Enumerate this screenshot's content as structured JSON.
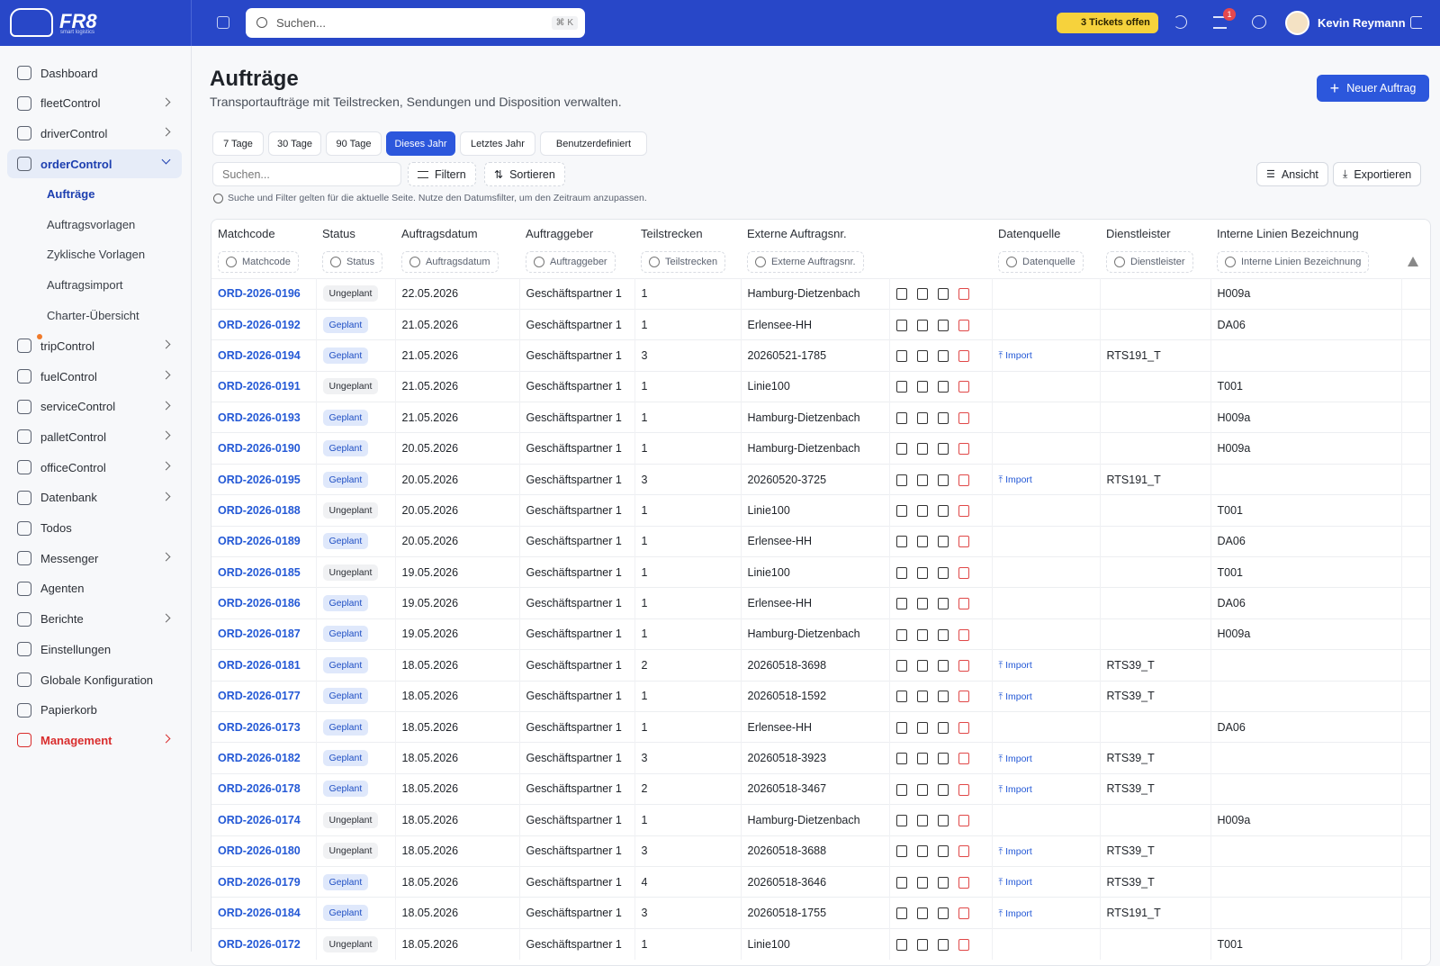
{
  "header": {
    "search": "Suchen...",
    "shortcut": "⌘ K",
    "tickets": "3 Tickets offen",
    "notifications": "1",
    "user": "Kevin Reymann"
  },
  "sidebar": {
    "logo": "FR8",
    "tagline": "smart logistics",
    "nav": [
      "Dashboard",
      "fleetControl",
      "driverControl",
      "orderControl",
      "tripControl",
      "fuelControl",
      "serviceControl",
      "palletControl",
      "officeControl",
      "Datenbank",
      "Todos",
      "Messenger",
      "Agenten",
      "Berichte",
      "Einstellungen",
      "Globale Konfiguration",
      "Papierkorb",
      "Management"
    ],
    "subnav": [
      "Aufträge",
      "Auftragsvorlagen",
      "Zyklische Vorlagen",
      "Auftragsimport",
      "Charter-Übersicht"
    ]
  },
  "page": {
    "title": "Aufträge",
    "subtitle": "Transportaufträge mit Teilstrecken, Sendungen und Disposition verwalten.",
    "new_button": "Neuer Auftrag",
    "date_ranges": [
      "7 Tage",
      "30 Tage",
      "90 Tage",
      "Dieses Jahr",
      "Letztes Jahr",
      "Benutzerdefiniert"
    ],
    "active_range": 3
  },
  "toolbar": {
    "search": "Suchen...",
    "filter": "Filtern",
    "sort": "Sortieren",
    "view": "Ansicht",
    "export": "Exportieren",
    "info": "Suche und Filter gelten für die aktuelle Seite. Nutze den Datumsfilter, um den Zeitraum anzupassen."
  },
  "table": {
    "columns": [
      "Matchcode",
      "Status",
      "Auftragsdatum",
      "Auftraggeber",
      "Teilstrecken",
      "Externe Auftragsnr.",
      "Datenquelle",
      "Dienstleister",
      "Interne Linien Bezeichnung"
    ],
    "rows": [
      [
        "ORD-2026-0196",
        "Ungeplant",
        "22.05.2026",
        "Geschäftspartner 1",
        1,
        "Hamburg-Dietzenbach",
        null,
        null,
        "H009a"
      ],
      [
        "ORD-2026-0192",
        "Geplant",
        "21.05.2026",
        "Geschäftspartner 1",
        1,
        "Erlensee-HH",
        null,
        null,
        "DA06"
      ],
      [
        "ORD-2026-0194",
        "Geplant",
        "21.05.2026",
        "Geschäftspartner 1",
        3,
        "20260521-1785",
        "Import",
        "RTS191_T",
        null
      ],
      [
        "ORD-2026-0191",
        "Ungeplant",
        "21.05.2026",
        "Geschäftspartner 1",
        1,
        "Linie100",
        null,
        null,
        "T001"
      ],
      [
        "ORD-2026-0193",
        "Geplant",
        "21.05.2026",
        "Geschäftspartner 1",
        1,
        "Hamburg-Dietzenbach",
        null,
        null,
        "H009a"
      ],
      [
        "ORD-2026-0190",
        "Geplant",
        "20.05.2026",
        "Geschäftspartner 1",
        1,
        "Hamburg-Dietzenbach",
        null,
        null,
        "H009a"
      ],
      [
        "ORD-2026-0195",
        "Geplant",
        "20.05.2026",
        "Geschäftspartner 1",
        3,
        "20260520-3725",
        "Import",
        "RTS191_T",
        null
      ],
      [
        "ORD-2026-0188",
        "Ungeplant",
        "20.05.2026",
        "Geschäftspartner 1",
        1,
        "Linie100",
        null,
        null,
        "T001"
      ],
      [
        "ORD-2026-0189",
        "Geplant",
        "20.05.2026",
        "Geschäftspartner 1",
        1,
        "Erlensee-HH",
        null,
        null,
        "DA06"
      ],
      [
        "ORD-2026-0185",
        "Ungeplant",
        "19.05.2026",
        "Geschäftspartner 1",
        1,
        "Linie100",
        null,
        null,
        "T001"
      ],
      [
        "ORD-2026-0186",
        "Geplant",
        "19.05.2026",
        "Geschäftspartner 1",
        1,
        "Erlensee-HH",
        null,
        null,
        "DA06"
      ],
      [
        "ORD-2026-0187",
        "Geplant",
        "19.05.2026",
        "Geschäftspartner 1",
        1,
        "Hamburg-Dietzenbach",
        null,
        null,
        "H009a"
      ],
      [
        "ORD-2026-0181",
        "Geplant",
        "18.05.2026",
        "Geschäftspartner 1",
        2,
        "20260518-3698",
        "Import",
        "RTS39_T",
        null
      ],
      [
        "ORD-2026-0177",
        "Geplant",
        "18.05.2026",
        "Geschäftspartner 1",
        1,
        "20260518-1592",
        "Import",
        "RTS39_T",
        null
      ],
      [
        "ORD-2026-0173",
        "Geplant",
        "18.05.2026",
        "Geschäftspartner 1",
        1,
        "Erlensee-HH",
        null,
        null,
        "DA06"
      ],
      [
        "ORD-2026-0182",
        "Geplant",
        "18.05.2026",
        "Geschäftspartner 1",
        3,
        "20260518-3923",
        "Import",
        "RTS39_T",
        null
      ],
      [
        "ORD-2026-0178",
        "Geplant",
        "18.05.2026",
        "Geschäftspartner 1",
        2,
        "20260518-3467",
        "Import",
        "RTS39_T",
        null
      ],
      [
        "ORD-2026-0174",
        "Ungeplant",
        "18.05.2026",
        "Geschäftspartner 1",
        1,
        "Hamburg-Dietzenbach",
        null,
        null,
        "H009a"
      ],
      [
        "ORD-2026-0180",
        "Ungeplant",
        "18.05.2026",
        "Geschäftspartner 1",
        3,
        "20260518-3688",
        "Import",
        "RTS39_T",
        null
      ],
      [
        "ORD-2026-0179",
        "Geplant",
        "18.05.2026",
        "Geschäftspartner 1",
        4,
        "20260518-3646",
        "Import",
        "RTS39_T",
        null
      ],
      [
        "ORD-2026-0184",
        "Geplant",
        "18.05.2026",
        "Geschäftspartner 1",
        3,
        "20260518-1755",
        "Import",
        "RTS191_T",
        null
      ],
      [
        "ORD-2026-0172",
        "Ungeplant",
        "18.05.2026",
        "Geschäftspartner 1",
        1,
        "Linie100",
        null,
        null,
        "T001"
      ]
    ]
  }
}
